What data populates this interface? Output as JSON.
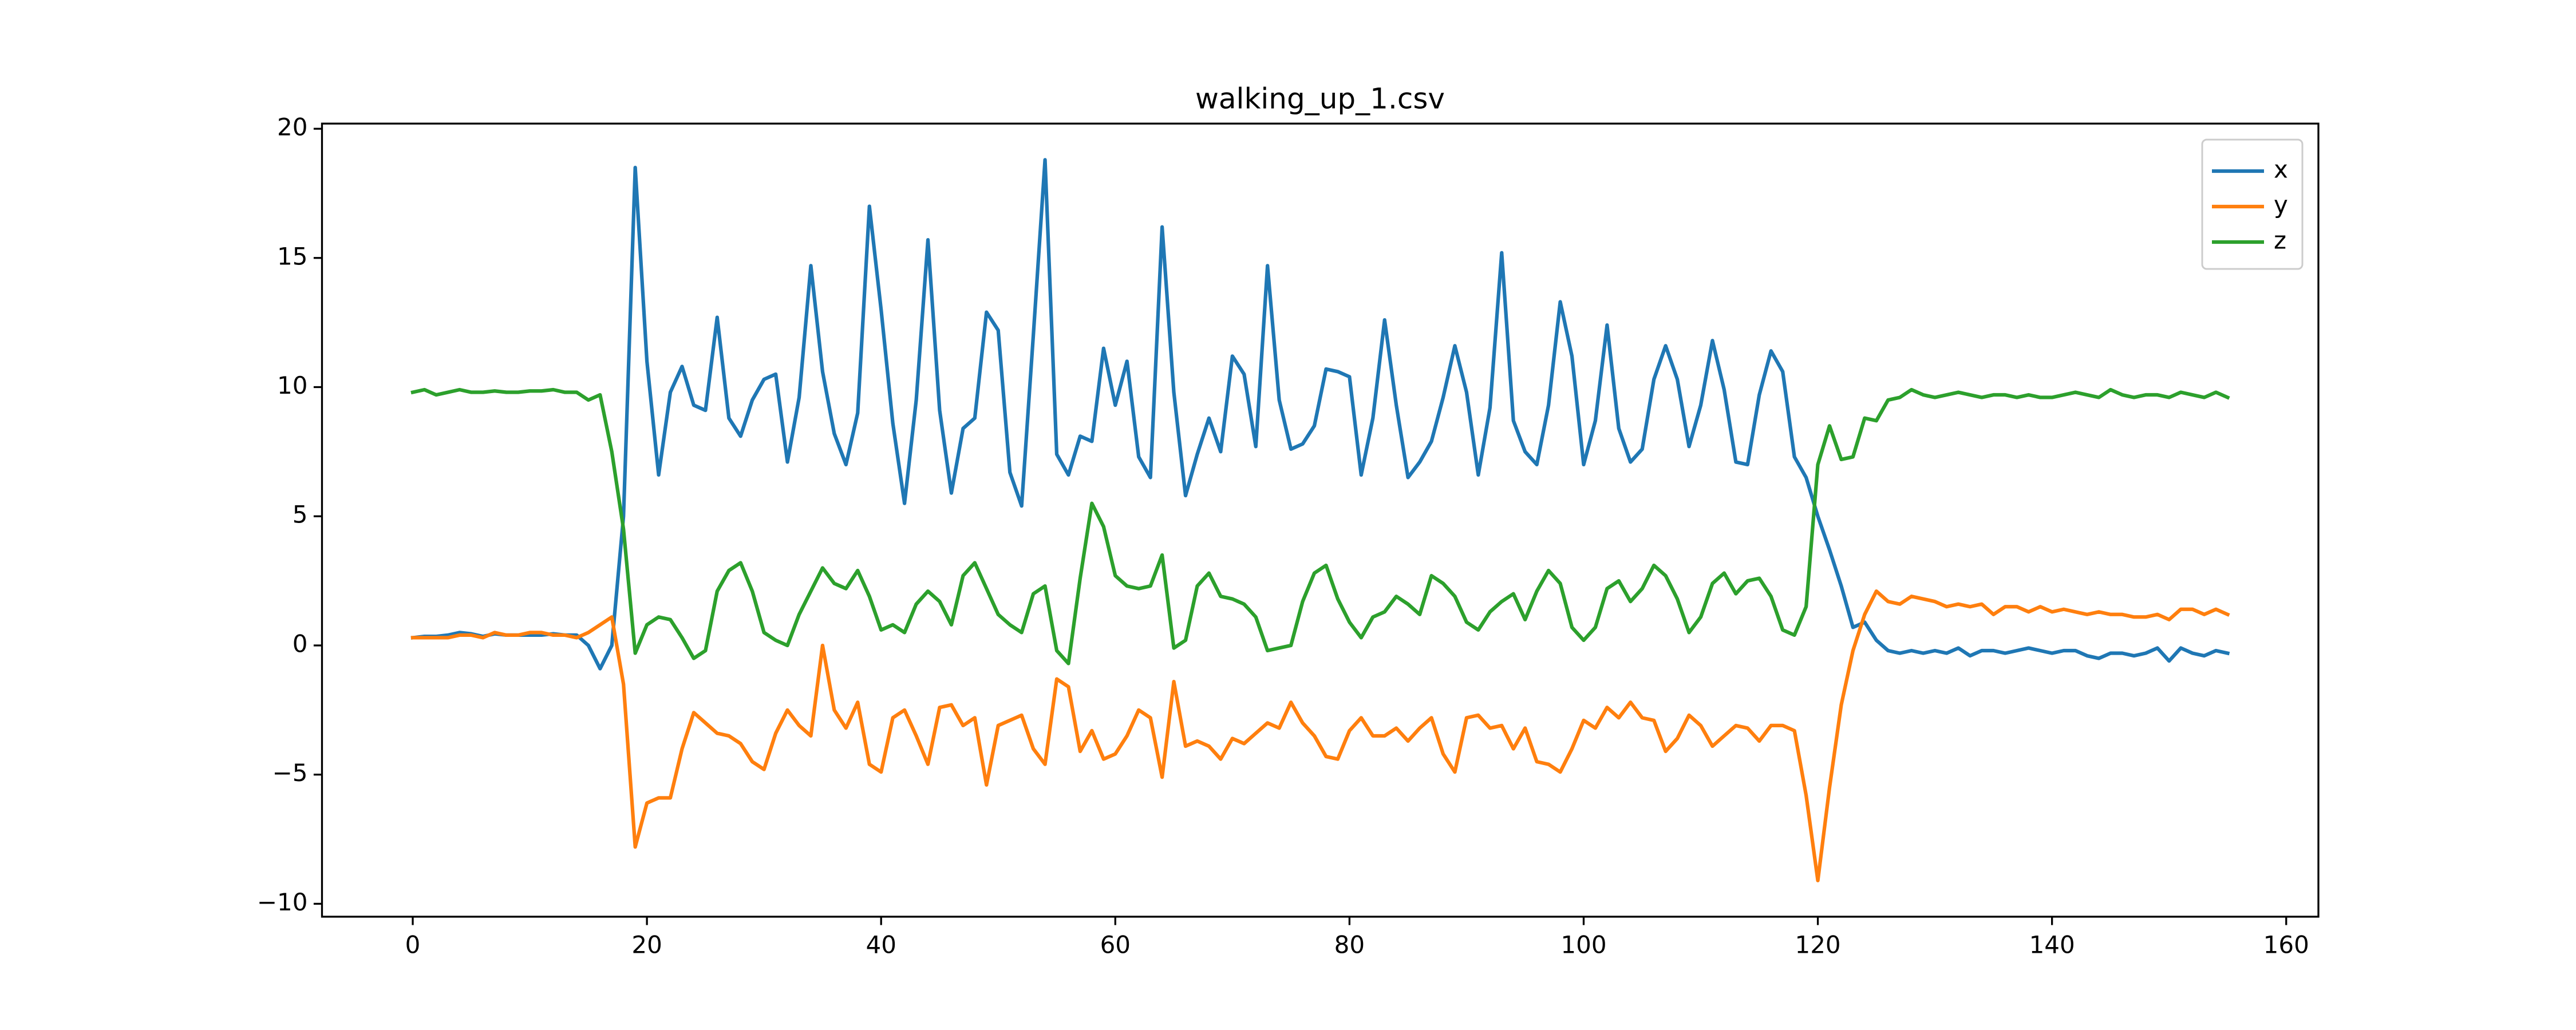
{
  "chart_data": {
    "type": "line",
    "title": "walking_up_1.csv",
    "x": [
      0,
      1,
      2,
      3,
      4,
      5,
      6,
      7,
      8,
      9,
      10,
      11,
      12,
      13,
      14,
      15,
      16,
      17,
      18,
      19,
      20,
      21,
      22,
      23,
      24,
      25,
      26,
      27,
      28,
      29,
      30,
      31,
      32,
      33,
      34,
      35,
      36,
      37,
      38,
      39,
      40,
      41,
      42,
      43,
      44,
      45,
      46,
      47,
      48,
      49,
      50,
      51,
      52,
      53,
      54,
      55,
      56,
      57,
      58,
      59,
      60,
      61,
      62,
      63,
      64,
      65,
      66,
      67,
      68,
      69,
      70,
      71,
      72,
      73,
      74,
      75,
      76,
      77,
      78,
      79,
      80,
      81,
      82,
      83,
      84,
      85,
      86,
      87,
      88,
      89,
      90,
      91,
      92,
      93,
      94,
      95,
      96,
      97,
      98,
      99,
      100,
      101,
      102,
      103,
      104,
      105,
      106,
      107,
      108,
      109,
      110,
      111,
      112,
      113,
      114,
      115,
      116,
      117,
      118,
      119,
      120,
      121,
      122,
      123,
      124,
      125,
      126,
      127,
      128,
      129,
      130,
      131,
      132,
      133,
      134,
      135,
      136,
      137,
      138,
      139,
      140,
      141,
      142,
      143,
      144,
      145,
      146,
      147,
      148,
      149,
      150,
      151,
      152,
      153,
      154,
      155
    ],
    "series": [
      {
        "name": "x",
        "color": "#1f77b4",
        "values": [
          0.3,
          0.35,
          0.35,
          0.4,
          0.5,
          0.45,
          0.35,
          0.45,
          0.4,
          0.4,
          0.4,
          0.4,
          0.45,
          0.4,
          0.4,
          0,
          -0.9,
          0,
          5,
          18.5,
          11,
          6.6,
          9.8,
          10.8,
          9.3,
          9.1,
          12.7,
          8.8,
          8.1,
          9.5,
          10.3,
          10.5,
          7.1,
          9.6,
          14.7,
          10.6,
          8.2,
          7,
          9,
          17,
          13,
          8.6,
          5.5,
          9.5,
          15.7,
          9.1,
          5.9,
          8.4,
          8.8,
          12.9,
          12.2,
          6.7,
          5.4,
          12,
          18.8,
          7.4,
          6.6,
          8.1,
          7.9,
          11.5,
          9.3,
          11,
          7.3,
          6.5,
          16.2,
          9.8,
          5.8,
          7.4,
          8.8,
          7.5,
          11.2,
          10.5,
          7.7,
          14.7,
          9.5,
          7.6,
          7.8,
          8.5,
          10.7,
          10.6,
          10.4,
          6.6,
          8.8,
          12.6,
          9.3,
          6.5,
          7.1,
          7.9,
          9.6,
          11.6,
          9.8,
          6.6,
          9.2,
          15.2,
          8.7,
          7.5,
          7,
          9.3,
          13.3,
          11.2,
          7,
          8.7,
          12.4,
          8.4,
          7.1,
          7.6,
          10.3,
          11.6,
          10.3,
          7.7,
          9.3,
          11.8,
          9.9,
          7.1,
          7,
          9.7,
          11.4,
          10.6,
          7.3,
          6.5,
          5,
          3.7,
          2.3,
          0.7,
          0.9,
          0.2,
          -0.2,
          -0.3,
          -0.2,
          -0.3,
          -0.2,
          -0.3,
          -0.1,
          -0.4,
          -0.2,
          -0.2,
          -0.3,
          -0.2,
          -0.1,
          -0.2,
          -0.3,
          -0.2,
          -0.2,
          -0.4,
          -0.5,
          -0.3,
          -0.3,
          -0.4,
          -0.3,
          -0.1,
          -0.6,
          -0.1,
          -0.3,
          -0.4,
          -0.2,
          -0.3
        ]
      },
      {
        "name": "y",
        "color": "#ff7f0e",
        "values": [
          0.3,
          0.3,
          0.3,
          0.3,
          0.4,
          0.4,
          0.3,
          0.5,
          0.4,
          0.4,
          0.5,
          0.5,
          0.4,
          0.4,
          0.3,
          0.5,
          0.8,
          1.1,
          -1.5,
          -7.8,
          -6.1,
          -5.9,
          -5.9,
          -4,
          -2.6,
          -3,
          -3.4,
          -3.5,
          -3.8,
          -4.5,
          -4.8,
          -3.4,
          -2.5,
          -3.1,
          -3.5,
          0,
          -2.5,
          -3.2,
          -2.2,
          -4.6,
          -4.9,
          -2.8,
          -2.5,
          -3.5,
          -4.6,
          -2.4,
          -2.3,
          -3.1,
          -2.8,
          -5.4,
          -3.1,
          -2.9,
          -2.7,
          -4,
          -4.6,
          -1.3,
          -1.6,
          -4.1,
          -3.3,
          -4.4,
          -4.2,
          -3.5,
          -2.5,
          -2.8,
          -5.1,
          -1.4,
          -3.9,
          -3.7,
          -3.9,
          -4.4,
          -3.6,
          -3.8,
          -3.4,
          -3,
          -3.2,
          -2.2,
          -3,
          -3.5,
          -4.3,
          -4.4,
          -3.3,
          -2.8,
          -3.5,
          -3.5,
          -3.2,
          -3.7,
          -3.2,
          -2.8,
          -4.2,
          -4.9,
          -2.8,
          -2.7,
          -3.2,
          -3.1,
          -4,
          -3.2,
          -4.5,
          -4.6,
          -4.9,
          -4,
          -2.9,
          -3.2,
          -2.4,
          -2.8,
          -2.2,
          -2.8,
          -2.9,
          -4.1,
          -3.6,
          -2.7,
          -3.1,
          -3.9,
          -3.5,
          -3.1,
          -3.2,
          -3.7,
          -3.1,
          -3.1,
          -3.3,
          -5.8,
          -9.1,
          -5.5,
          -2.3,
          -0.2,
          1.2,
          2.1,
          1.7,
          1.6,
          1.9,
          1.8,
          1.7,
          1.5,
          1.6,
          1.5,
          1.6,
          1.2,
          1.5,
          1.5,
          1.3,
          1.5,
          1.3,
          1.4,
          1.3,
          1.2,
          1.3,
          1.2,
          1.2,
          1.1,
          1.1,
          1.2,
          1.0,
          1.4,
          1.4,
          1.2,
          1.4,
          1.2
        ]
      },
      {
        "name": "z",
        "color": "#2ca02c",
        "values": [
          9.8,
          9.9,
          9.7,
          9.8,
          9.9,
          9.8,
          9.8,
          9.85,
          9.8,
          9.8,
          9.85,
          9.85,
          9.9,
          9.8,
          9.8,
          9.5,
          9.7,
          7.5,
          4.5,
          -0.3,
          0.8,
          1.1,
          1,
          0.3,
          -0.5,
          -0.2,
          2.1,
          2.9,
          3.2,
          2.1,
          0.5,
          0.2,
          0,
          1.2,
          2.1,
          3,
          2.4,
          2.2,
          2.9,
          1.9,
          0.6,
          0.8,
          0.5,
          1.6,
          2.1,
          1.7,
          0.8,
          2.7,
          3.2,
          2.2,
          1.2,
          0.8,
          0.5,
          2,
          2.3,
          -0.2,
          -0.7,
          2.6,
          5.5,
          4.6,
          2.7,
          2.3,
          2.2,
          2.3,
          3.5,
          -0.1,
          0.2,
          2.3,
          2.8,
          1.9,
          1.8,
          1.6,
          1.1,
          -0.2,
          -0.1,
          0,
          1.7,
          2.8,
          3.1,
          1.8,
          0.9,
          0.3,
          1.1,
          1.3,
          1.9,
          1.6,
          1.2,
          2.7,
          2.4,
          1.9,
          0.9,
          0.6,
          1.3,
          1.7,
          2,
          1,
          2.1,
          2.9,
          2.4,
          0.7,
          0.2,
          0.7,
          2.2,
          2.5,
          1.7,
          2.2,
          3.1,
          2.7,
          1.8,
          0.5,
          1.1,
          2.4,
          2.8,
          2,
          2.5,
          2.6,
          1.9,
          0.6,
          0.4,
          1.5,
          7,
          8.5,
          7.2,
          7.3,
          8.8,
          8.7,
          9.5,
          9.6,
          9.9,
          9.7,
          9.6,
          9.7,
          9.8,
          9.7,
          9.6,
          9.7,
          9.7,
          9.6,
          9.7,
          9.6,
          9.6,
          9.7,
          9.8,
          9.7,
          9.6,
          9.9,
          9.7,
          9.6,
          9.7,
          9.7,
          9.6,
          9.8,
          9.7,
          9.6,
          9.8,
          9.6
        ]
      }
    ],
    "xlim": [
      -7.75,
      162.75
    ],
    "xticks": [
      0,
      20,
      40,
      60,
      80,
      100,
      120,
      140,
      160
    ],
    "ylim": [
      -10.5,
      20.2
    ],
    "yticks": [
      {
        "value": -10,
        "label": "−10"
      },
      {
        "value": -5,
        "label": "−5"
      },
      0,
      5,
      10,
      15,
      20
    ],
    "grid": false,
    "legend": "upper right"
  }
}
